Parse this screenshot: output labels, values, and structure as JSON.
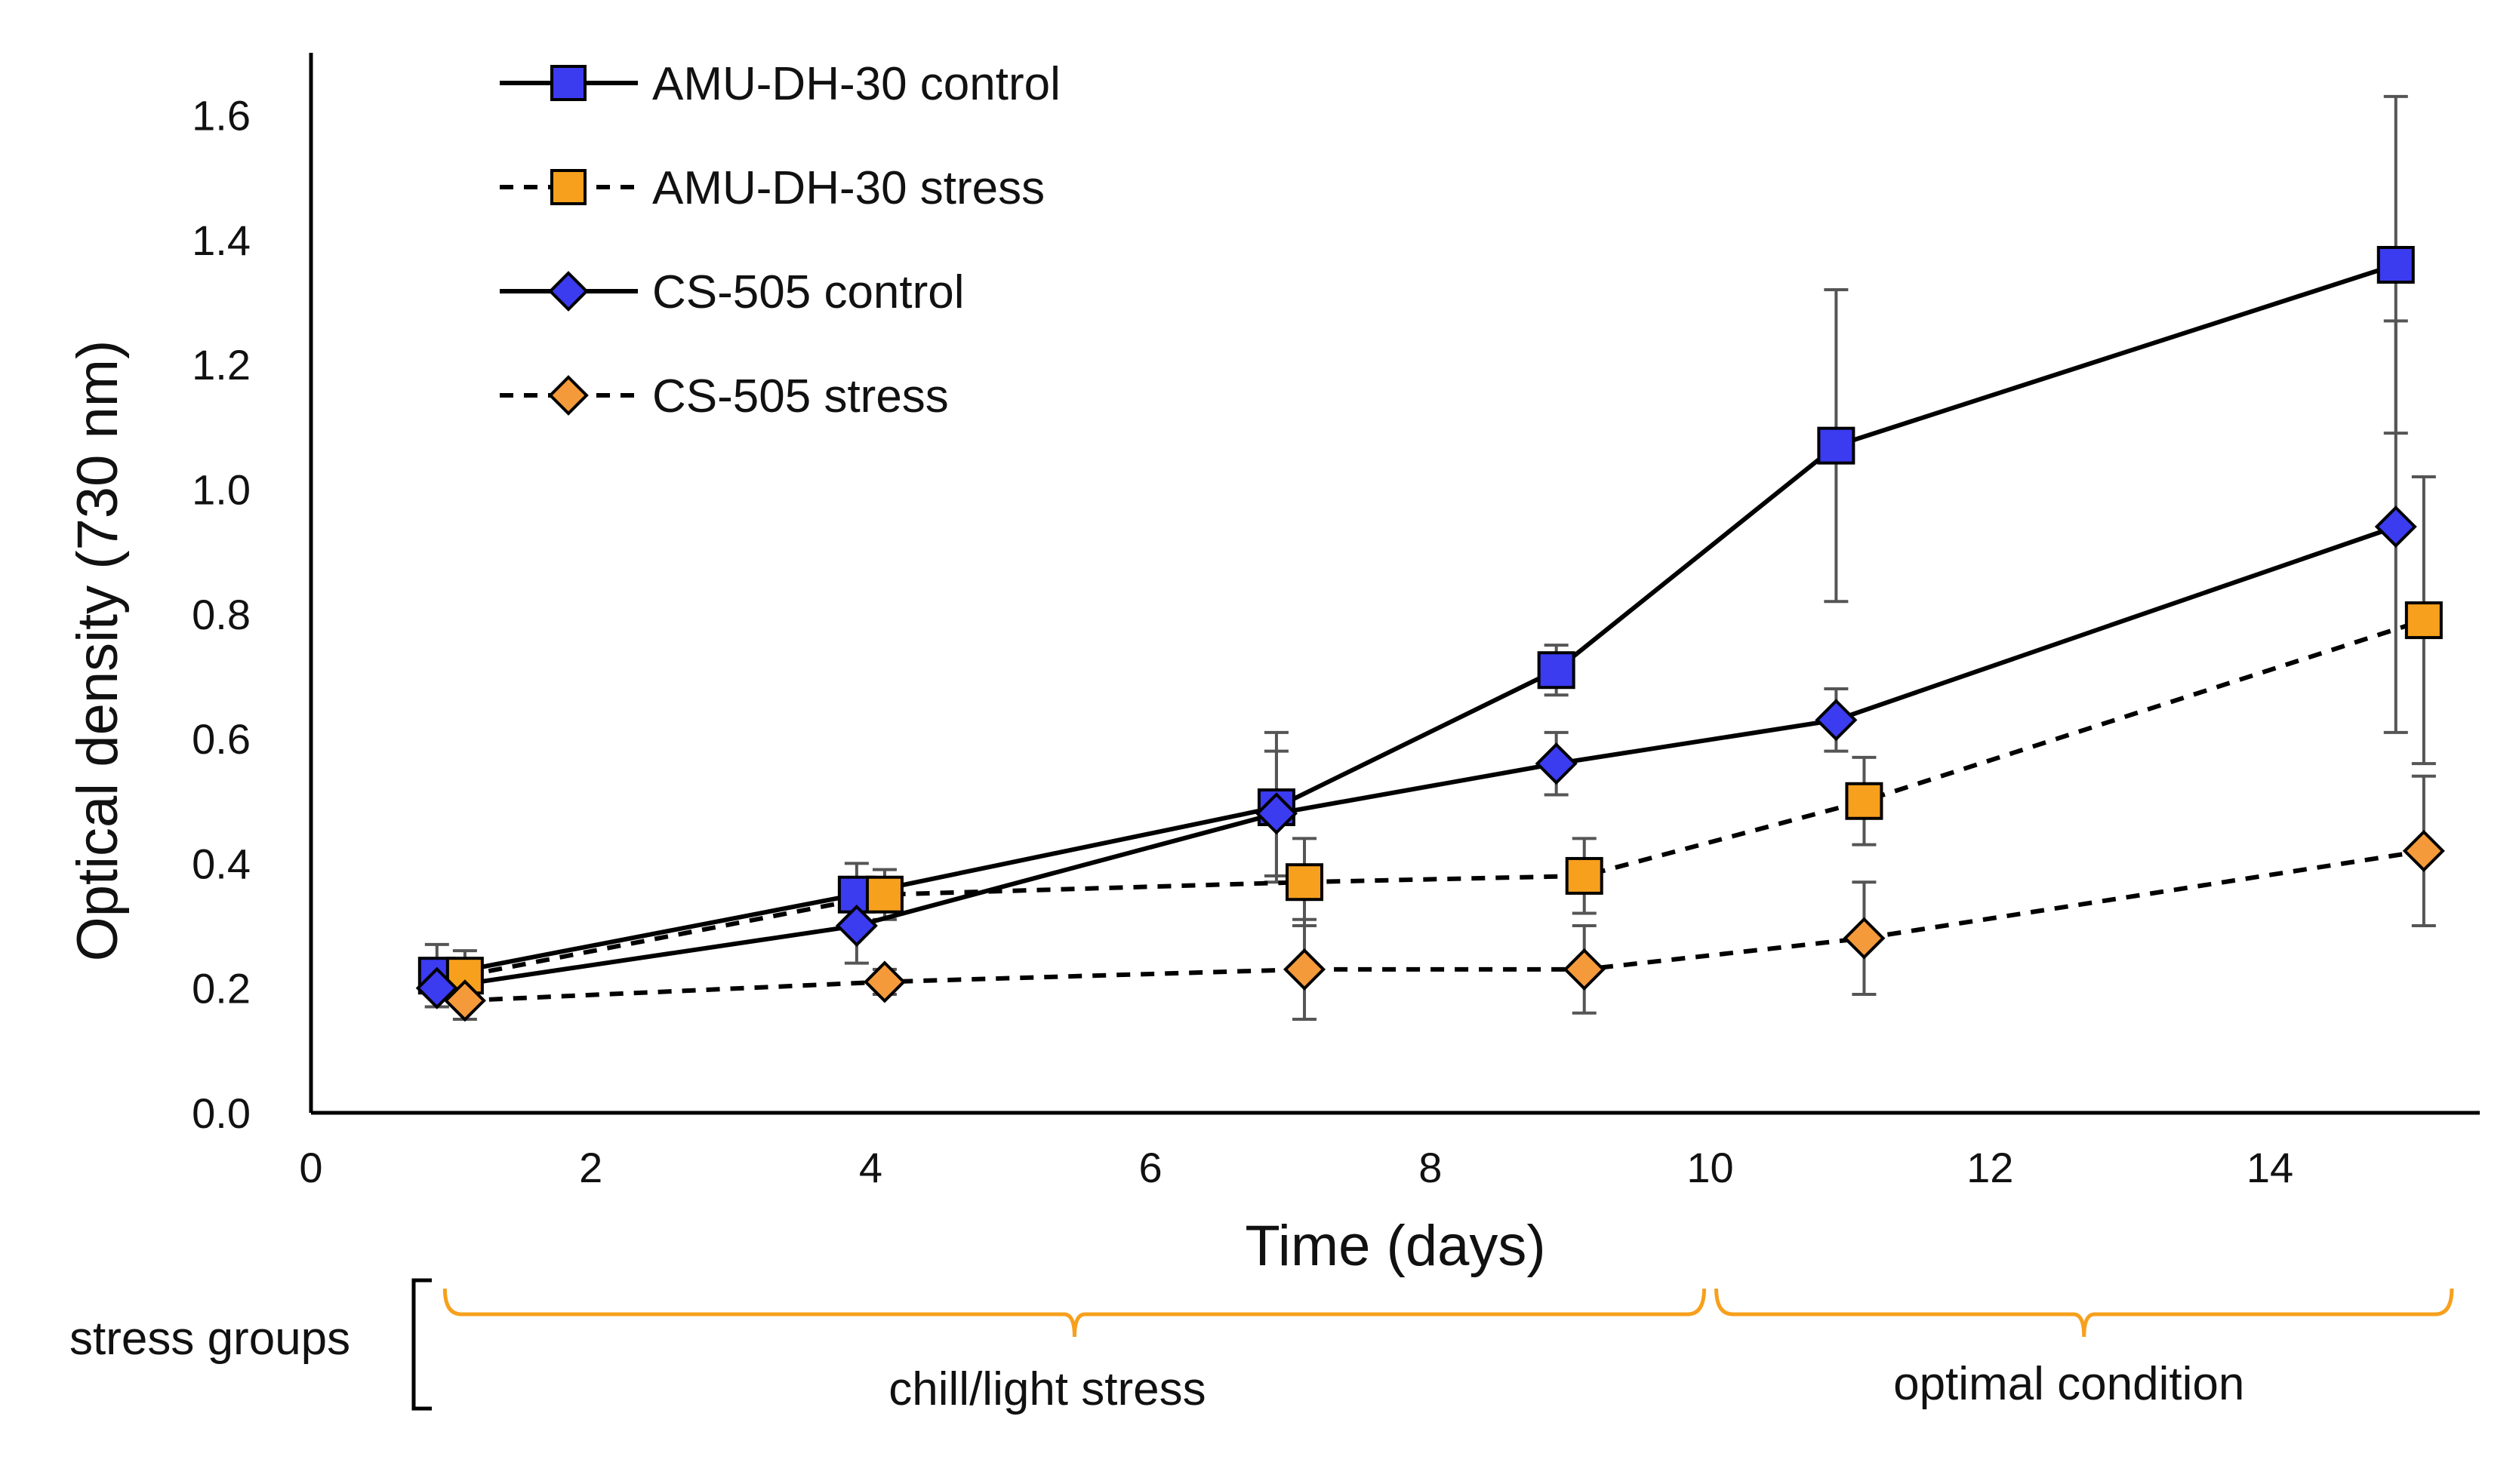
{
  "chart_data": {
    "type": "line",
    "title": "",
    "xlabel": "Time (days)",
    "ylabel": "Optical density (730 nm)",
    "xlim": [
      0,
      15.5
    ],
    "ylim": [
      0,
      1.7
    ],
    "xticks": [
      0,
      2,
      4,
      6,
      8,
      10,
      12,
      14
    ],
    "yticks": [
      "0.0",
      "0.2",
      "0.4",
      "0.6",
      "0.8",
      "1.0",
      "1.2",
      "1.4",
      "1.6"
    ],
    "grid": false,
    "legend_position": "top-left",
    "series": [
      {
        "name": "AMU-DH-30 control",
        "marker": "square",
        "color": "#3b3bf0",
        "line": "solid",
        "x": [
          0.9,
          3.9,
          6.9,
          8.9,
          10.9,
          14.9
        ],
        "y": [
          0.22,
          0.35,
          0.49,
          0.71,
          1.07,
          1.36
        ],
        "err": [
          0.05,
          0.05,
          0.12,
          0.04,
          0.25,
          0.27
        ]
      },
      {
        "name": "AMU-DH-30 stress",
        "marker": "square",
        "color": "#f7a01d",
        "line": "dashed",
        "x": [
          1.1,
          4.1,
          7.1,
          9.1,
          11.1,
          15.1
        ],
        "y": [
          0.22,
          0.35,
          0.37,
          0.38,
          0.5,
          0.79
        ],
        "err": [
          0.04,
          0.04,
          0.07,
          0.06,
          0.07,
          0.23
        ]
      },
      {
        "name": "CS-505 control",
        "marker": "diamond",
        "color": "#3b3bf0",
        "line": "solid",
        "x": [
          0.9,
          3.9,
          6.9,
          8.9,
          10.9,
          14.9
        ],
        "y": [
          0.2,
          0.3,
          0.48,
          0.56,
          0.63,
          0.94
        ],
        "err": [
          0.03,
          0.06,
          0.1,
          0.05,
          0.05,
          0.33
        ]
      },
      {
        "name": "CS-505 stress",
        "marker": "diamond",
        "color": "#f59a3a",
        "line": "dashed",
        "x": [
          1.1,
          4.1,
          7.1,
          9.1,
          11.1,
          15.1
        ],
        "y": [
          0.18,
          0.21,
          0.23,
          0.23,
          0.28,
          0.42
        ],
        "err": [
          0.03,
          0.02,
          0.08,
          0.07,
          0.09,
          0.12
        ]
      }
    ],
    "annotations": {
      "group_title": "stress groups",
      "brackets": [
        {
          "label": "chill/light stress",
          "from": 1,
          "to": 10
        },
        {
          "label": "optimal condition",
          "from": 10,
          "to": 15.3
        }
      ],
      "bracket_color": "#f7a01d"
    }
  }
}
